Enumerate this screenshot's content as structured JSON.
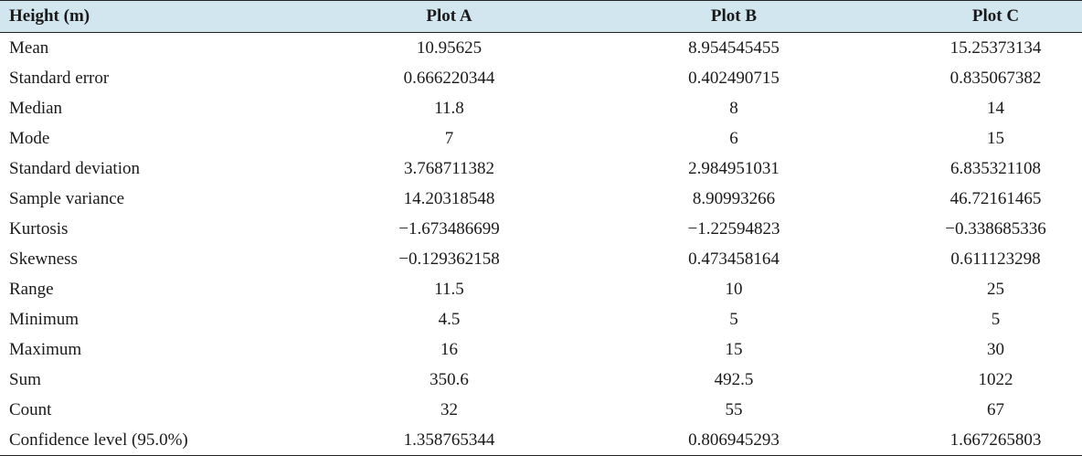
{
  "table": {
    "headers": [
      "Height (m)",
      "Plot A",
      "Plot B",
      "Plot C"
    ],
    "rows": [
      [
        "Mean",
        "10.95625",
        "8.954545455",
        "15.25373134"
      ],
      [
        "Standard error",
        "0.666220344",
        "0.402490715",
        "0.835067382"
      ],
      [
        "Median",
        "11.8",
        "8",
        "14"
      ],
      [
        "Mode",
        "7",
        "6",
        "15"
      ],
      [
        "Standard deviation",
        "3.768711382",
        "2.984951031",
        "6.835321108"
      ],
      [
        "Sample variance",
        "14.20318548",
        "8.90993266",
        "46.72161465"
      ],
      [
        "Kurtosis",
        "−1.673486699",
        "−1.22594823",
        "−0.338685336"
      ],
      [
        "Skewness",
        "−0.129362158",
        "0.473458164",
        "0.611123298"
      ],
      [
        "Range",
        "11.5",
        "10",
        "25"
      ],
      [
        "Minimum",
        "4.5",
        "5",
        "5"
      ],
      [
        "Maximum",
        "16",
        "15",
        "30"
      ],
      [
        "Sum",
        "350.6",
        "492.5",
        "1022"
      ],
      [
        "Count",
        "32",
        "55",
        "67"
      ],
      [
        "Confidence level (95.0%)",
        "1.358765344",
        "0.806945293",
        "1.667265803"
      ]
    ]
  },
  "colors": {
    "header_background": "#d2e6ef",
    "rule": "#222222"
  }
}
